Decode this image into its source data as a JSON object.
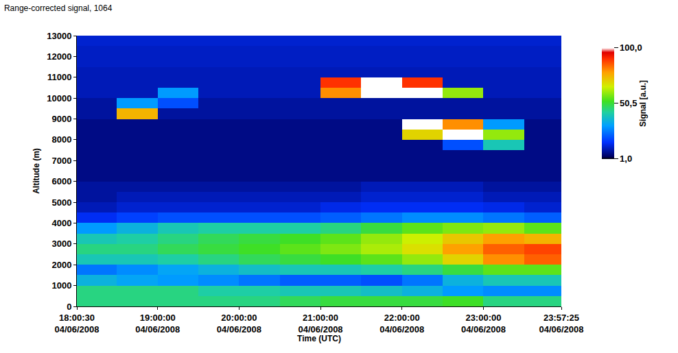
{
  "chart_data": {
    "type": "heatmap",
    "title": "Range-corrected signal, 1064",
    "x_label": "Time (UTC)",
    "y_label": "Altitude (m)",
    "colorbar_title": "Signal [a.u.]",
    "x": [
      "2008-06-04 18:15:00",
      "2008-06-04 18:45:00",
      "2008-06-04 19:15:00",
      "2008-06-04 19:45:00",
      "2008-06-04 20:15:00",
      "2008-06-04 20:45:00",
      "2008-06-04 21:15:00",
      "2008-06-04 21:45:00",
      "2008-06-04 22:15:00",
      "2008-06-04 22:45:00",
      "2008-06-04 23:15:00",
      "2008-06-04 23:45:00"
    ],
    "y": [
      250,
      750,
      1250,
      1750,
      2250,
      2750,
      3250,
      3750,
      4250,
      4750,
      5250,
      5750,
      6250,
      6750,
      7250,
      7750,
      8250,
      8750,
      9250,
      9750,
      10250,
      10750,
      11250,
      11750,
      12250,
      12750
    ],
    "cells": [
      [
        45,
        45,
        45,
        45,
        45,
        48,
        50,
        50,
        50,
        52,
        45,
        45
      ],
      [
        45,
        45,
        45,
        42,
        42,
        40,
        40,
        38,
        35,
        30,
        28,
        28
      ],
      [
        35,
        32,
        30,
        28,
        25,
        22,
        22,
        20,
        25,
        35,
        40,
        40
      ],
      [
        25,
        28,
        32,
        35,
        38,
        40,
        40,
        42,
        45,
        50,
        55,
        55
      ],
      [
        40,
        40,
        42,
        45,
        48,
        50,
        52,
        55,
        60,
        70,
        80,
        85
      ],
      [
        45,
        45,
        48,
        50,
        52,
        55,
        58,
        62,
        68,
        78,
        85,
        88
      ],
      [
        40,
        42,
        45,
        48,
        50,
        52,
        55,
        60,
        65,
        72,
        78,
        75
      ],
      [
        30,
        35,
        40,
        42,
        42,
        42,
        45,
        50,
        55,
        58,
        60,
        55
      ],
      [
        15,
        18,
        20,
        20,
        20,
        20,
        22,
        25,
        28,
        28,
        25,
        22
      ],
      [
        10,
        12,
        12,
        12,
        12,
        12,
        14,
        15,
        15,
        15,
        14,
        12
      ],
      [
        8,
        10,
        10,
        10,
        10,
        10,
        10,
        12,
        12,
        12,
        10,
        10
      ],
      [
        8,
        8,
        8,
        8,
        8,
        8,
        8,
        10,
        10,
        10,
        8,
        8
      ],
      [
        6,
        6,
        6,
        6,
        6,
        6,
        6,
        6,
        6,
        6,
        6,
        6
      ],
      [
        6,
        6,
        6,
        6,
        6,
        6,
        6,
        6,
        6,
        6,
        6,
        6
      ],
      [
        6,
        6,
        6,
        6,
        6,
        6,
        6,
        6,
        6,
        6,
        6,
        6
      ],
      [
        6,
        6,
        6,
        6,
        6,
        6,
        6,
        6,
        6,
        20,
        40,
        6
      ],
      [
        6,
        6,
        6,
        6,
        6,
        6,
        6,
        6,
        70,
        100,
        60,
        6
      ],
      [
        6,
        6,
        6,
        6,
        6,
        6,
        6,
        6,
        110,
        80,
        30,
        6
      ],
      [
        8,
        75,
        8,
        8,
        8,
        8,
        8,
        8,
        8,
        8,
        8,
        8
      ],
      [
        8,
        30,
        20,
        8,
        8,
        8,
        8,
        8,
        8,
        8,
        8,
        8
      ],
      [
        10,
        10,
        30,
        10,
        10,
        10,
        80,
        110,
        105,
        60,
        10,
        10
      ],
      [
        10,
        10,
        10,
        10,
        10,
        10,
        90,
        110,
        90,
        10,
        10,
        10
      ],
      [
        10,
        10,
        10,
        10,
        10,
        10,
        10,
        10,
        10,
        10,
        10,
        10
      ],
      [
        11,
        11,
        11,
        11,
        11,
        11,
        11,
        11,
        11,
        11,
        11,
        11
      ],
      [
        11,
        11,
        11,
        11,
        11,
        11,
        11,
        11,
        11,
        11,
        11,
        11
      ],
      [
        12,
        12,
        12,
        12,
        12,
        12,
        12,
        12,
        12,
        12,
        12,
        12
      ]
    ],
    "clim": [
      1,
      100
    ],
    "cticks": [
      {
        "value": 1,
        "label": "1,0"
      },
      {
        "value": 50.5,
        "label": "50,5"
      },
      {
        "value": 100,
        "label": "100,0"
      }
    ],
    "xlim": [
      "2008-06-04 18:00:30",
      "2008-06-04 23:57:25"
    ],
    "xticks": [
      {
        "value": "2008-06-04 18:00:30",
        "label": "18:00:30 04/06/2008"
      },
      {
        "value": "2008-06-04 19:00:00",
        "label": "19:00:00 04/06/2008"
      },
      {
        "value": "2008-06-04 20:00:00",
        "label": "20:00:00 04/06/2008"
      },
      {
        "value": "2008-06-04 21:00:00",
        "label": "21:00:00 04/06/2008"
      },
      {
        "value": "2008-06-04 22:00:00",
        "label": "22:00:00 04/06/2008"
      },
      {
        "value": "2008-06-04 23:00:00",
        "label": "23:00:00 04/06/2008"
      },
      {
        "value": "2008-06-04 23:57:25",
        "label": "23:57:25 04/06/2008"
      }
    ],
    "ylim": [
      0,
      13000
    ],
    "yticks": [
      0,
      1000,
      2000,
      3000,
      4000,
      5000,
      6000,
      7000,
      8000,
      9000,
      10000,
      11000,
      12000,
      13000
    ],
    "grid": false
  }
}
